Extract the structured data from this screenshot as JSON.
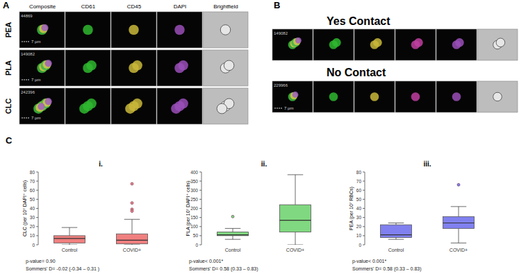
{
  "panels": {
    "a": {
      "label": "A",
      "columns": [
        "Composite",
        "CD61",
        "CD45",
        "DAPI",
        "Brightfield"
      ],
      "rows": [
        {
          "label": "PEA",
          "id": "44869",
          "scale": "7 µm"
        },
        {
          "label": "PLA",
          "id": "149082",
          "scale": "7 µm"
        },
        {
          "label": "CLC",
          "id": "242396",
          "scale": "7 µm"
        }
      ]
    },
    "b": {
      "label": "B",
      "rows": [
        {
          "label": "Yes Contact",
          "id": "149082"
        },
        {
          "label": "No Contact",
          "id": "229966",
          "scale": "7 µm"
        }
      ]
    },
    "c": {
      "label": "C"
    }
  },
  "chart_data": [
    {
      "type": "box",
      "subtitle": "i.",
      "ylabel": "CLC (per 10⁷ DAPI⁺ cells)",
      "categories": [
        "Control",
        "COVID+"
      ],
      "color": "#f08080",
      "boxes": [
        {
          "min": 0,
          "q1": 2,
          "median": 7,
          "q3": 10,
          "max": 19,
          "outliers": []
        },
        {
          "min": 0,
          "q1": 1,
          "median": 5,
          "q3": 12,
          "max": 28,
          "outliers": [
            67,
            46,
            39,
            37
          ]
        }
      ],
      "ylim": [
        0,
        80
      ],
      "yticks": [
        0,
        10,
        20,
        30,
        40,
        50,
        60,
        70,
        80
      ],
      "annotations": [
        "p-value= 0.90",
        "Sommers' D= -0.02 (-0.34 – 0.31 )"
      ]
    },
    {
      "type": "box",
      "subtitle": "ii.",
      "ylabel": "PLA (per 10⁷ DAPI⁺ cells)",
      "categories": [
        "Control",
        "COVID+"
      ],
      "color": "#80d880",
      "boxes": [
        {
          "min": 30,
          "q1": 50,
          "median": 55,
          "q3": 70,
          "max": 90,
          "outliers": [
            155
          ]
        },
        {
          "min": 0,
          "q1": 70,
          "median": 135,
          "q3": 220,
          "max": 385,
          "outliers": []
        }
      ],
      "ylim": [
        0,
        400
      ],
      "yticks": [
        0,
        50,
        100,
        150,
        200,
        250,
        300,
        350,
        400
      ],
      "annotations": [
        "p-value< 0.001*",
        "Sommers' D= 0.58 (0.33 – 0.83)"
      ]
    },
    {
      "type": "box",
      "subtitle": "iii.",
      "ylabel": "PEA (per 10⁷ RBCs)",
      "categories": [
        "Control",
        "COVID+"
      ],
      "color": "#8080f0",
      "boxes": [
        {
          "min": 6,
          "q1": 8,
          "median": 11,
          "q3": 22,
          "max": 24,
          "outliers": []
        },
        {
          "min": 2,
          "q1": 18,
          "median": 24,
          "q3": 31,
          "max": 42,
          "outliers": [
            66
          ]
        }
      ],
      "ylim": [
        0,
        80
      ],
      "yticks": [
        0,
        10,
        20,
        30,
        40,
        50,
        60,
        70,
        80
      ],
      "annotations": [
        "p-value< 0.001*",
        "Sommers' D= 0.58 (0.33 – 0.83)"
      ]
    }
  ]
}
